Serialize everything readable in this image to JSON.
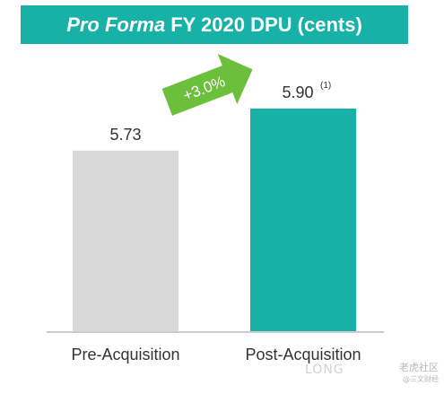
{
  "title": {
    "italic": "Pro Forma",
    "rest": "FY 2020 DPU (cents)"
  },
  "chart_data": {
    "type": "bar",
    "title": "Pro Forma FY 2020 DPU (cents)",
    "categories": [
      "Pre-Acquisition",
      "Post-Acquisition"
    ],
    "values": [
      5.73,
      5.9
    ],
    "data_labels": [
      "5.73",
      "5.90"
    ],
    "footnote_marks": [
      "",
      "(1)"
    ],
    "annotation": "+3.0%",
    "bar_colors": [
      "#d9d9d9",
      "#17b1a8"
    ],
    "arrow_color": "#6cbf3a",
    "grid": false,
    "legend": "none"
  },
  "watermark": {
    "brand": "LONG",
    "main": "老虎社区",
    "sub": "@三文财经"
  },
  "colors": {
    "accent": "#17b1a8",
    "axis": "#9a9a9a"
  }
}
